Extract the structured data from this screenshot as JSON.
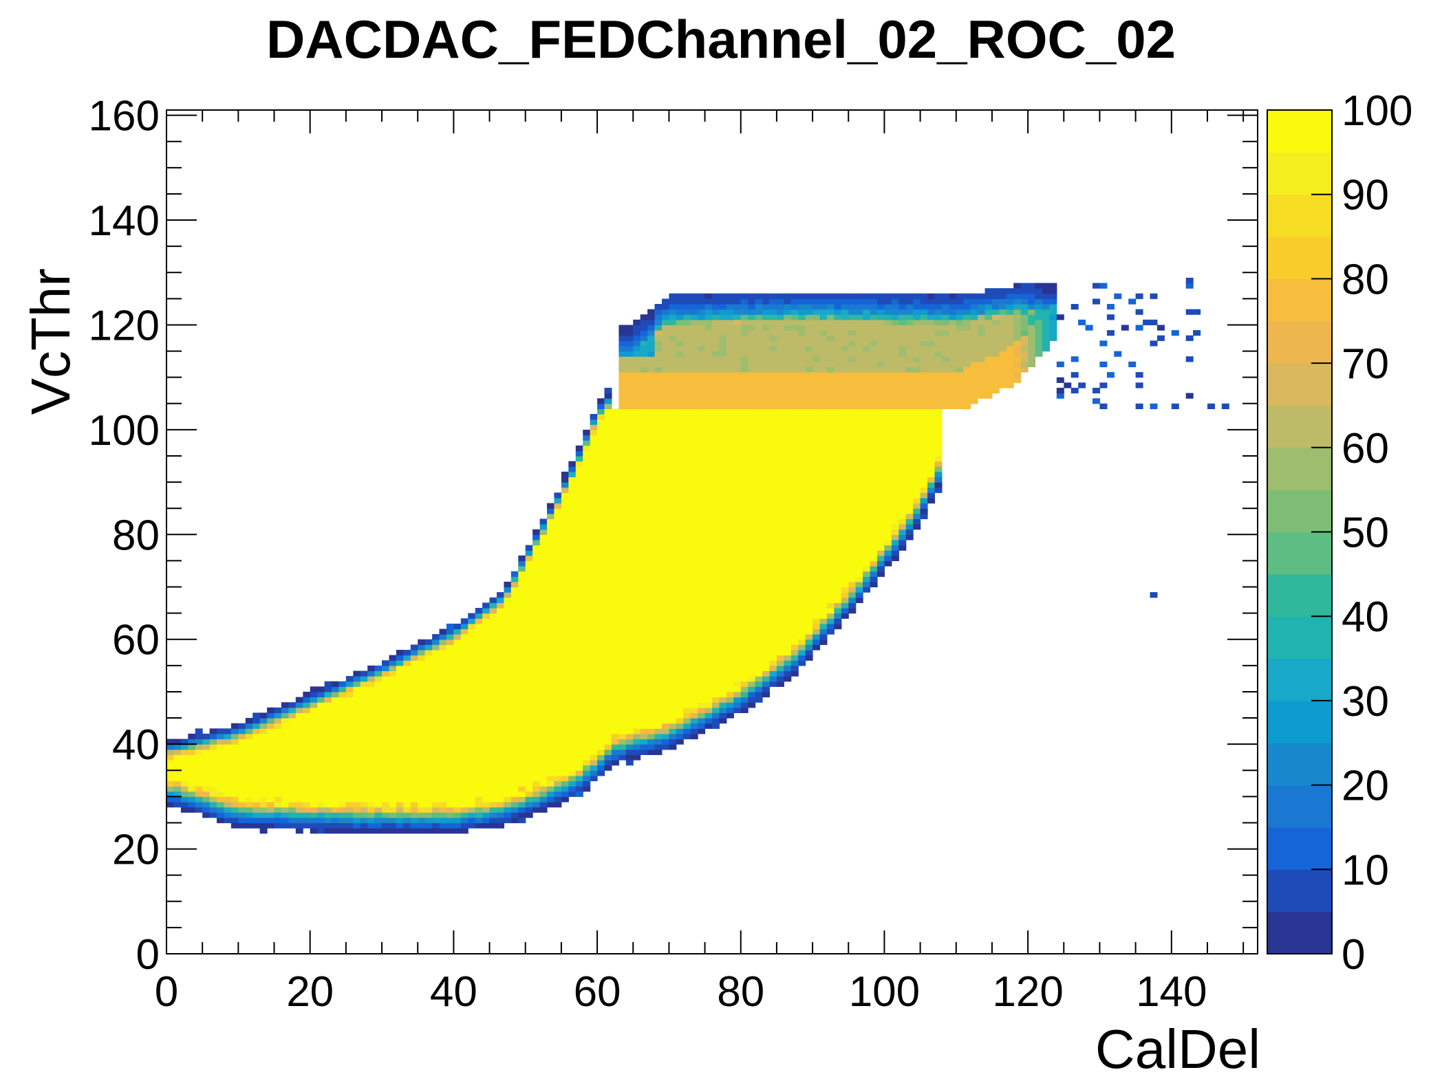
{
  "chart_data": {
    "type": "heatmap",
    "title": "DACDAC_FEDChannel_02_ROC_02",
    "xlabel": "CalDel",
    "ylabel": "VcThr",
    "xlim": [
      0,
      152
    ],
    "ylim": [
      0,
      161
    ],
    "x_ticks": [
      "0",
      "20",
      "40",
      "60",
      "80",
      "100",
      "120",
      "140"
    ],
    "x_tick_values": [
      0,
      20,
      40,
      60,
      80,
      100,
      120,
      140
    ],
    "y_ticks": [
      "0",
      "20",
      "40",
      "60",
      "80",
      "100",
      "120",
      "140",
      "160"
    ],
    "y_tick_values": [
      0,
      20,
      40,
      60,
      80,
      100,
      120,
      140,
      160
    ],
    "colorbar": {
      "range": [
        0,
        100
      ],
      "ticks": [
        "0",
        "10",
        "20",
        "30",
        "40",
        "50",
        "60",
        "70",
        "80",
        "90",
        "100"
      ],
      "tick_values": [
        0,
        10,
        20,
        30,
        40,
        50,
        60,
        70,
        80,
        90,
        100
      ],
      "colors": [
        "#283593",
        "#1f4bb8",
        "#1565d8",
        "#1a78d3",
        "#1788cc",
        "#0d9bd0",
        "#18a8c8",
        "#21b3b0",
        "#2fb89c",
        "#5ebd82",
        "#7fbd75",
        "#9ebd6f",
        "#bdbb68",
        "#d9b85e",
        "#eeb64e",
        "#f7bd3c",
        "#f9cc2c",
        "#f6dd24",
        "#f5ee1e",
        "#f9fa0c"
      ]
    },
    "regions": {
      "core_value": 100,
      "core_band": [
        [
          1,
          34,
          37
        ],
        [
          10,
          30,
          40
        ],
        [
          20,
          29.5,
          46
        ],
        [
          30,
          29,
          52
        ],
        [
          40,
          29,
          59
        ],
        [
          47,
          30.5,
          66
        ],
        [
          52,
          33,
          78
        ],
        [
          57,
          36,
          91
        ],
        [
          60,
          39,
          101
        ],
        [
          62,
          42,
          104
        ],
        [
          70,
          45,
          104
        ],
        [
          80,
          52,
          104
        ],
        [
          88,
          60,
          104
        ],
        [
          96,
          72,
          104
        ],
        [
          104,
          86,
          104
        ],
        [
          108,
          96,
          104
        ]
      ],
      "upper_band": [
        [
          64,
          104,
          118
        ],
        [
          70,
          104,
          124
        ],
        [
          90,
          104,
          125
        ],
        [
          110,
          104,
          124
        ],
        [
          118,
          109,
          126
        ],
        [
          124,
          118,
          127
        ]
      ],
      "upper_band_levels": {
        "plateau": 80,
        "mid": 62
      },
      "stray_hits": [
        [
          137,
          68
        ],
        [
          147,
          104
        ],
        [
          145,
          104
        ],
        [
          140,
          104
        ],
        [
          135,
          104
        ],
        [
          130,
          104
        ]
      ],
      "grid_step": 1
    }
  }
}
